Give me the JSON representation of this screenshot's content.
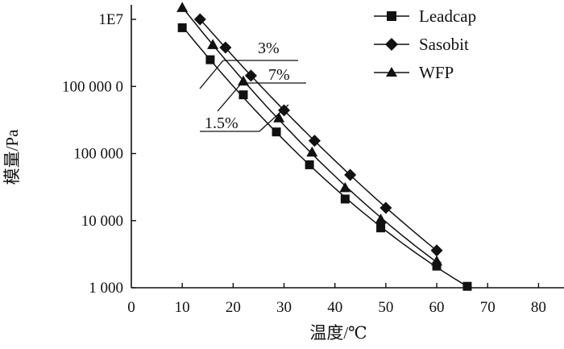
{
  "chart_data": {
    "type": "scatter",
    "title": "",
    "xlabel": "温度/℃",
    "ylabel": "模量/Pa",
    "xlim": [
      0,
      85
    ],
    "ylim": [
      1000,
      10000000
    ],
    "yscale": "log",
    "x_ticks": [
      0,
      10,
      20,
      30,
      40,
      50,
      60,
      70,
      80
    ],
    "x_tick_labels": [
      "0",
      "10",
      "20",
      "30",
      "40",
      "50",
      "60",
      "70",
      "80"
    ],
    "y_ticks": [
      1000,
      10000,
      100000,
      1000000,
      10000000
    ],
    "y_tick_labels": [
      "1 000",
      "10 000",
      "100 000",
      "100 000 0",
      "1E7"
    ],
    "legend_position": "top-right",
    "series": [
      {
        "name": "Leadcap",
        "marker": "square",
        "x": [
          10,
          15.5,
          22,
          28.5,
          35,
          42,
          49,
          60,
          66
        ],
        "y": [
          7500000,
          2500000,
          750000,
          210000,
          68000,
          21000,
          7800,
          2100,
          1050
        ]
      },
      {
        "name": "Sasobit",
        "marker": "diamond",
        "x": [
          13.5,
          18.5,
          23.5,
          30,
          36,
          43,
          50,
          60
        ],
        "y": [
          10000000,
          3800000,
          1450000,
          440000,
          155000,
          48000,
          15500,
          3600
        ]
      },
      {
        "name": "WFP",
        "marker": "triangle",
        "x": [
          10,
          16,
          22,
          29,
          35.5,
          42,
          49,
          60
        ],
        "y": [
          15000000,
          4200000,
          1200000,
          340000,
          105000,
          31000,
          10500,
          2500
        ]
      }
    ],
    "annotations": [
      "3%",
      "7%",
      "1.5%"
    ]
  }
}
